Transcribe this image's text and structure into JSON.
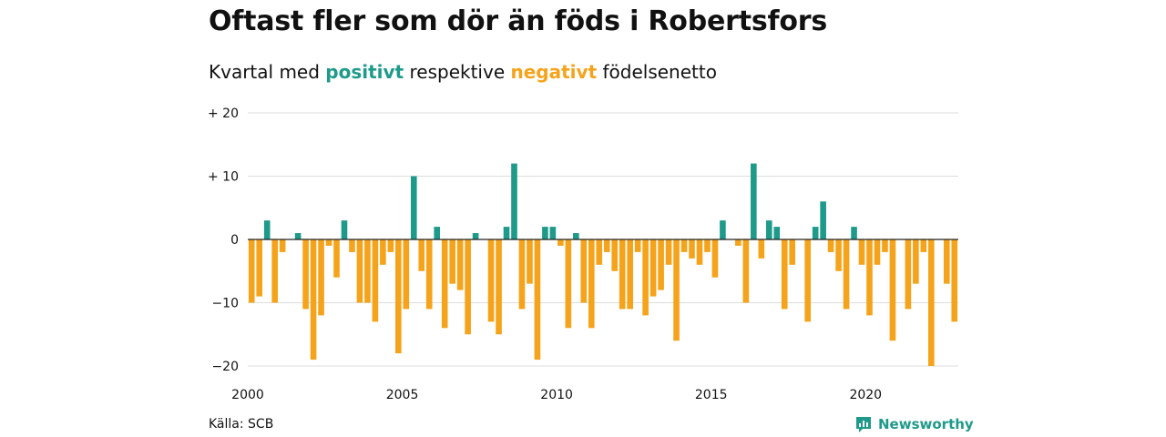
{
  "title": "Oftast fler som dör än föds i Robertsfors",
  "subtitle": {
    "prefix": "Kvartal med",
    "positive_word": "positivt",
    "middle": "respektive",
    "negative_word": "negativt",
    "suffix": "födelsenetto"
  },
  "source": "Källa: SCB",
  "brand": {
    "name": "Newsworthy",
    "icon": "newsworthy-logo-icon"
  },
  "colors": {
    "positive": "#1e9a8a",
    "negative": "#f5a31a",
    "grid": "#dddddd",
    "zero": "#222222"
  },
  "chart_data": {
    "type": "bar",
    "ylim": [
      -20,
      20
    ],
    "y_ticks": [
      {
        "value": 20,
        "label": "+ 20"
      },
      {
        "value": 10,
        "label": "+ 10"
      },
      {
        "value": 0,
        "label": "0"
      },
      {
        "value": -10,
        "label": "−10"
      },
      {
        "value": -20,
        "label": "−20"
      }
    ],
    "x_ticks": [
      {
        "value": 2000,
        "label": "2000"
      },
      {
        "value": 2005,
        "label": "2005"
      },
      {
        "value": 2010,
        "label": "2010"
      },
      {
        "value": 2015,
        "label": "2015"
      },
      {
        "value": 2020,
        "label": "2020"
      }
    ],
    "start_quarter": "2000Q1",
    "values": [
      -10,
      -9,
      3,
      -10,
      -2,
      0,
      1,
      -11,
      -19,
      -12,
      -1,
      -6,
      3,
      -2,
      -10,
      -10,
      -13,
      -4,
      -2,
      -18,
      -11,
      10,
      -5,
      -11,
      2,
      -14,
      -7,
      -8,
      -15,
      1,
      0,
      -13,
      -15,
      2,
      12,
      -11,
      -7,
      -19,
      2,
      2,
      -1,
      -14,
      1,
      -10,
      -14,
      -4,
      -2,
      -5,
      -11,
      -11,
      -2,
      -12,
      -9,
      -8,
      -4,
      -16,
      -2,
      -3,
      -4,
      -2,
      -6,
      3,
      0,
      -1,
      -10,
      12,
      -3,
      3,
      2,
      -11,
      -4,
      0,
      -13,
      2,
      6,
      -2,
      -5,
      -11,
      2,
      -4,
      -12,
      -4,
      -2,
      -16,
      0,
      -11,
      -7,
      -2,
      -20,
      0,
      -7,
      -13
    ]
  }
}
